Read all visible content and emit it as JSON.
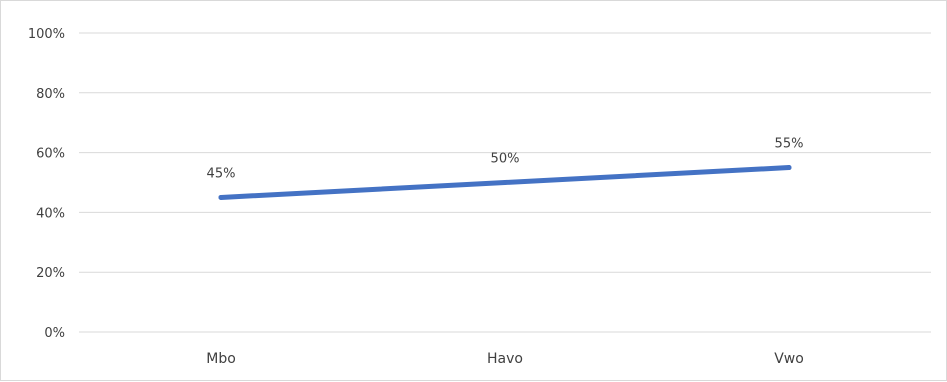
{
  "chart_data": {
    "type": "line",
    "categories": [
      "Mbo",
      "Havo",
      "Vwo"
    ],
    "series": [
      {
        "values": [
          45,
          50,
          55
        ],
        "color": "#4472c4"
      }
    ],
    "data_labels": [
      "45%",
      "50%",
      "55%"
    ],
    "yticks": [
      "0%",
      "20%",
      "40%",
      "60%",
      "80%",
      "100%"
    ],
    "ylim": [
      0,
      100
    ],
    "grid": true,
    "legend": "none",
    "gridline_color": "#d9d9d9"
  }
}
